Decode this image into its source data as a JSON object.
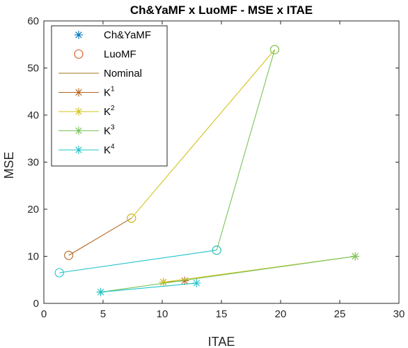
{
  "chart_data": {
    "type": "scatter",
    "title": "Ch&YaMF x LuoMF - MSE  x ITAE",
    "xlabel": "ITAE",
    "ylabel": "MSE",
    "xlim": [
      0,
      30
    ],
    "ylim": [
      0,
      60
    ],
    "xticks": [
      0,
      5,
      10,
      15,
      20,
      25,
      30
    ],
    "yticks": [
      0,
      10,
      20,
      30,
      40,
      50,
      60
    ],
    "grid": false,
    "legend_placement": "top-left",
    "legend": [
      {
        "label": "Ch&YaMF",
        "sup": "",
        "type": "marker-star",
        "color": "#0072BD"
      },
      {
        "label": "LuoMF",
        "sup": "",
        "type": "marker-circle",
        "color": "#D95319"
      },
      {
        "label": "Nominal",
        "sup": "",
        "type": "line",
        "color": "#A2761B"
      },
      {
        "label": "K",
        "sup": "1",
        "type": "line-star",
        "color": "#B5651D"
      },
      {
        "label": "K",
        "sup": "2",
        "type": "line-star",
        "color": "#D2C31E"
      },
      {
        "label": "K",
        "sup": "3",
        "type": "line-star",
        "color": "#77C35A"
      },
      {
        "label": "K",
        "sup": "4",
        "type": "line-star",
        "color": "#1FC3CB"
      }
    ],
    "series": [
      {
        "key": "K1",
        "color": "#B5651D",
        "points": [
          {
            "x": 2.1,
            "y": 10.2,
            "marker": "circle"
          },
          {
            "x": 7.4,
            "y": 18.1,
            "marker": "circle"
          }
        ]
      },
      {
        "key": "K2",
        "color": "#D2C31E",
        "points": [
          {
            "x": 7.4,
            "y": 18.1,
            "marker": "circle"
          },
          {
            "x": 19.5,
            "y": 53.9,
            "marker": "circle"
          }
        ]
      },
      {
        "key": "K3",
        "color": "#77C35A",
        "points": [
          {
            "x": 19.5,
            "y": 53.9,
            "marker": "circle"
          },
          {
            "x": 14.6,
            "y": 11.3,
            "marker": "circle"
          }
        ]
      },
      {
        "key": "K4",
        "color": "#1FC3CB",
        "points": [
          {
            "x": 14.6,
            "y": 11.3,
            "marker": "circle"
          },
          {
            "x": 1.3,
            "y": 6.5,
            "marker": "circle"
          }
        ]
      },
      {
        "key": "K1b",
        "color": "#B5651D",
        "points": [
          {
            "x": 10.1,
            "y": 4.5,
            "marker": "star"
          },
          {
            "x": 11.9,
            "y": 4.8,
            "marker": "star"
          }
        ]
      },
      {
        "key": "K2b",
        "color": "#D2C31E",
        "points": [
          {
            "x": 10.1,
            "y": 4.5,
            "marker": "star"
          },
          {
            "x": 26.3,
            "y": 10.0,
            "marker": "star"
          }
        ]
      },
      {
        "key": "K3b",
        "color": "#77C35A",
        "points": [
          {
            "x": 26.3,
            "y": 10.0,
            "marker": "star"
          },
          {
            "x": 4.8,
            "y": 2.4,
            "marker": "star"
          }
        ]
      },
      {
        "key": "K4b",
        "color": "#1FC3CB",
        "points": [
          {
            "x": 4.8,
            "y": 2.4,
            "marker": "star"
          },
          {
            "x": 12.9,
            "y": 4.3,
            "marker": "star"
          }
        ]
      }
    ]
  }
}
